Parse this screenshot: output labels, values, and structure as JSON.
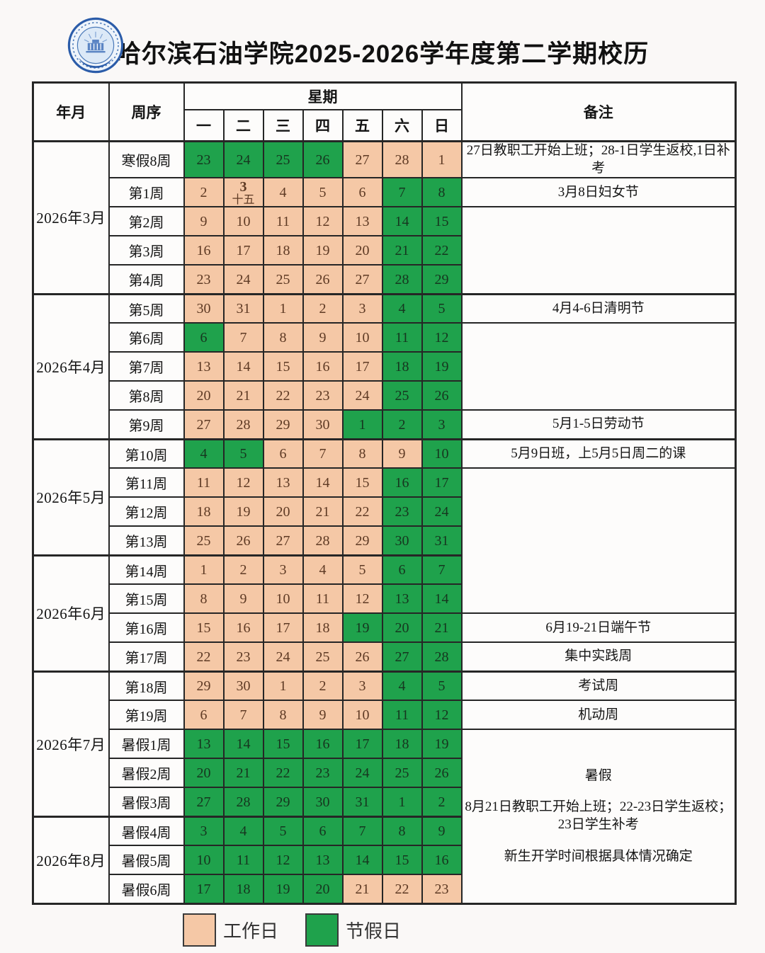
{
  "title": "哈尔滨石油学院2025-2026学年度第二学期校历",
  "logo_name": "school-emblem",
  "colors": {
    "workday": "#f5c8a6",
    "holiday": "#1fa24c",
    "workday_text": "#5e3a24",
    "holiday_text": "#16361f"
  },
  "header": {
    "month": "年月",
    "week_order": "周序",
    "weekday_group": "星期",
    "remarks": "备注",
    "weekdays": [
      "一",
      "二",
      "三",
      "四",
      "五",
      "六",
      "日"
    ]
  },
  "months": [
    {
      "label": "2026年3月",
      "span": 5
    },
    {
      "label": "2026年4月",
      "span": 5
    },
    {
      "label": "2026年5月",
      "span": 4
    },
    {
      "label": "2026年6月",
      "span": 4
    },
    {
      "label": "2026年7月",
      "span": 5
    },
    {
      "label": "2026年8月",
      "span": 3
    }
  ],
  "rows": [
    {
      "week": "寒假8周",
      "days": [
        {
          "d": "23",
          "t": "h"
        },
        {
          "d": "24",
          "t": "h"
        },
        {
          "d": "25",
          "t": "h"
        },
        {
          "d": "26",
          "t": "h"
        },
        {
          "d": "27",
          "t": "w"
        },
        {
          "d": "28",
          "t": "w"
        },
        {
          "d": "1",
          "t": "w"
        }
      ]
    },
    {
      "week": "第1周",
      "days": [
        {
          "d": "2",
          "t": "w"
        },
        {
          "d": "3",
          "t": "w",
          "sub": "十五",
          "bold": true
        },
        {
          "d": "4",
          "t": "w"
        },
        {
          "d": "5",
          "t": "w"
        },
        {
          "d": "6",
          "t": "w"
        },
        {
          "d": "7",
          "t": "h"
        },
        {
          "d": "8",
          "t": "h"
        }
      ]
    },
    {
      "week": "第2周",
      "days": [
        {
          "d": "9",
          "t": "w"
        },
        {
          "d": "10",
          "t": "w"
        },
        {
          "d": "11",
          "t": "w"
        },
        {
          "d": "12",
          "t": "w"
        },
        {
          "d": "13",
          "t": "w"
        },
        {
          "d": "14",
          "t": "h"
        },
        {
          "d": "15",
          "t": "h"
        }
      ]
    },
    {
      "week": "第3周",
      "days": [
        {
          "d": "16",
          "t": "w"
        },
        {
          "d": "17",
          "t": "w"
        },
        {
          "d": "18",
          "t": "w"
        },
        {
          "d": "19",
          "t": "w"
        },
        {
          "d": "20",
          "t": "w"
        },
        {
          "d": "21",
          "t": "h"
        },
        {
          "d": "22",
          "t": "h"
        }
      ]
    },
    {
      "week": "第4周",
      "days": [
        {
          "d": "23",
          "t": "w"
        },
        {
          "d": "24",
          "t": "w"
        },
        {
          "d": "25",
          "t": "w"
        },
        {
          "d": "26",
          "t": "w"
        },
        {
          "d": "27",
          "t": "w"
        },
        {
          "d": "28",
          "t": "h"
        },
        {
          "d": "29",
          "t": "h"
        }
      ]
    },
    {
      "week": "第5周",
      "days": [
        {
          "d": "30",
          "t": "w"
        },
        {
          "d": "31",
          "t": "w"
        },
        {
          "d": "1",
          "t": "w"
        },
        {
          "d": "2",
          "t": "w"
        },
        {
          "d": "3",
          "t": "w"
        },
        {
          "d": "4",
          "t": "h"
        },
        {
          "d": "5",
          "t": "h"
        }
      ]
    },
    {
      "week": "第6周",
      "days": [
        {
          "d": "6",
          "t": "h"
        },
        {
          "d": "7",
          "t": "w"
        },
        {
          "d": "8",
          "t": "w"
        },
        {
          "d": "9",
          "t": "w"
        },
        {
          "d": "10",
          "t": "w"
        },
        {
          "d": "11",
          "t": "h"
        },
        {
          "d": "12",
          "t": "h"
        }
      ]
    },
    {
      "week": "第7周",
      "days": [
        {
          "d": "13",
          "t": "w"
        },
        {
          "d": "14",
          "t": "w"
        },
        {
          "d": "15",
          "t": "w"
        },
        {
          "d": "16",
          "t": "w"
        },
        {
          "d": "17",
          "t": "w"
        },
        {
          "d": "18",
          "t": "h"
        },
        {
          "d": "19",
          "t": "h"
        }
      ]
    },
    {
      "week": "第8周",
      "days": [
        {
          "d": "20",
          "t": "w"
        },
        {
          "d": "21",
          "t": "w"
        },
        {
          "d": "22",
          "t": "w"
        },
        {
          "d": "23",
          "t": "w"
        },
        {
          "d": "24",
          "t": "w"
        },
        {
          "d": "25",
          "t": "h"
        },
        {
          "d": "26",
          "t": "h"
        }
      ]
    },
    {
      "week": "第9周",
      "days": [
        {
          "d": "27",
          "t": "w"
        },
        {
          "d": "28",
          "t": "w"
        },
        {
          "d": "29",
          "t": "w"
        },
        {
          "d": "30",
          "t": "w"
        },
        {
          "d": "1",
          "t": "h"
        },
        {
          "d": "2",
          "t": "h"
        },
        {
          "d": "3",
          "t": "h"
        }
      ]
    },
    {
      "week": "第10周",
      "days": [
        {
          "d": "4",
          "t": "h"
        },
        {
          "d": "5",
          "t": "h"
        },
        {
          "d": "6",
          "t": "w"
        },
        {
          "d": "7",
          "t": "w"
        },
        {
          "d": "8",
          "t": "w"
        },
        {
          "d": "9",
          "t": "w"
        },
        {
          "d": "10",
          "t": "h"
        }
      ]
    },
    {
      "week": "第11周",
      "days": [
        {
          "d": "11",
          "t": "w"
        },
        {
          "d": "12",
          "t": "w"
        },
        {
          "d": "13",
          "t": "w"
        },
        {
          "d": "14",
          "t": "w"
        },
        {
          "d": "15",
          "t": "w"
        },
        {
          "d": "16",
          "t": "h"
        },
        {
          "d": "17",
          "t": "h"
        }
      ]
    },
    {
      "week": "第12周",
      "days": [
        {
          "d": "18",
          "t": "w"
        },
        {
          "d": "19",
          "t": "w"
        },
        {
          "d": "20",
          "t": "w"
        },
        {
          "d": "21",
          "t": "w"
        },
        {
          "d": "22",
          "t": "w"
        },
        {
          "d": "23",
          "t": "h"
        },
        {
          "d": "24",
          "t": "h"
        }
      ]
    },
    {
      "week": "第13周",
      "days": [
        {
          "d": "25",
          "t": "w"
        },
        {
          "d": "26",
          "t": "w"
        },
        {
          "d": "27",
          "t": "w"
        },
        {
          "d": "28",
          "t": "w"
        },
        {
          "d": "29",
          "t": "w"
        },
        {
          "d": "30",
          "t": "h"
        },
        {
          "d": "31",
          "t": "h"
        }
      ]
    },
    {
      "week": "第14周",
      "days": [
        {
          "d": "1",
          "t": "w"
        },
        {
          "d": "2",
          "t": "w"
        },
        {
          "d": "3",
          "t": "w"
        },
        {
          "d": "4",
          "t": "w"
        },
        {
          "d": "5",
          "t": "w"
        },
        {
          "d": "6",
          "t": "h"
        },
        {
          "d": "7",
          "t": "h"
        }
      ]
    },
    {
      "week": "第15周",
      "days": [
        {
          "d": "8",
          "t": "w"
        },
        {
          "d": "9",
          "t": "w"
        },
        {
          "d": "10",
          "t": "w"
        },
        {
          "d": "11",
          "t": "w"
        },
        {
          "d": "12",
          "t": "w"
        },
        {
          "d": "13",
          "t": "h"
        },
        {
          "d": "14",
          "t": "h"
        }
      ]
    },
    {
      "week": "第16周",
      "days": [
        {
          "d": "15",
          "t": "w"
        },
        {
          "d": "16",
          "t": "w"
        },
        {
          "d": "17",
          "t": "w"
        },
        {
          "d": "18",
          "t": "w"
        },
        {
          "d": "19",
          "t": "h"
        },
        {
          "d": "20",
          "t": "h"
        },
        {
          "d": "21",
          "t": "h"
        }
      ]
    },
    {
      "week": "第17周",
      "days": [
        {
          "d": "22",
          "t": "w"
        },
        {
          "d": "23",
          "t": "w"
        },
        {
          "d": "24",
          "t": "w"
        },
        {
          "d": "25",
          "t": "w"
        },
        {
          "d": "26",
          "t": "w"
        },
        {
          "d": "27",
          "t": "h"
        },
        {
          "d": "28",
          "t": "h"
        }
      ]
    },
    {
      "week": "第18周",
      "days": [
        {
          "d": "29",
          "t": "w"
        },
        {
          "d": "30",
          "t": "w"
        },
        {
          "d": "1",
          "t": "w"
        },
        {
          "d": "2",
          "t": "w"
        },
        {
          "d": "3",
          "t": "w"
        },
        {
          "d": "4",
          "t": "h"
        },
        {
          "d": "5",
          "t": "h"
        }
      ]
    },
    {
      "week": "第19周",
      "days": [
        {
          "d": "6",
          "t": "w"
        },
        {
          "d": "7",
          "t": "w"
        },
        {
          "d": "8",
          "t": "w"
        },
        {
          "d": "9",
          "t": "w"
        },
        {
          "d": "10",
          "t": "w"
        },
        {
          "d": "11",
          "t": "h"
        },
        {
          "d": "12",
          "t": "h"
        }
      ]
    },
    {
      "week": "暑假1周",
      "days": [
        {
          "d": "13",
          "t": "h"
        },
        {
          "d": "14",
          "t": "h"
        },
        {
          "d": "15",
          "t": "h"
        },
        {
          "d": "16",
          "t": "h"
        },
        {
          "d": "17",
          "t": "h"
        },
        {
          "d": "18",
          "t": "h"
        },
        {
          "d": "19",
          "t": "h"
        }
      ]
    },
    {
      "week": "暑假2周",
      "days": [
        {
          "d": "20",
          "t": "h"
        },
        {
          "d": "21",
          "t": "h"
        },
        {
          "d": "22",
          "t": "h"
        },
        {
          "d": "23",
          "t": "h"
        },
        {
          "d": "24",
          "t": "h"
        },
        {
          "d": "25",
          "t": "h"
        },
        {
          "d": "26",
          "t": "h"
        }
      ]
    },
    {
      "week": "暑假3周",
      "days": [
        {
          "d": "27",
          "t": "h"
        },
        {
          "d": "28",
          "t": "h"
        },
        {
          "d": "29",
          "t": "h"
        },
        {
          "d": "30",
          "t": "h"
        },
        {
          "d": "31",
          "t": "h"
        },
        {
          "d": "1",
          "t": "h"
        },
        {
          "d": "2",
          "t": "h"
        }
      ]
    },
    {
      "week": "暑假4周",
      "days": [
        {
          "d": "3",
          "t": "h"
        },
        {
          "d": "4",
          "t": "h"
        },
        {
          "d": "5",
          "t": "h"
        },
        {
          "d": "6",
          "t": "h"
        },
        {
          "d": "7",
          "t": "h"
        },
        {
          "d": "8",
          "t": "h"
        },
        {
          "d": "9",
          "t": "h"
        }
      ]
    },
    {
      "week": "暑假5周",
      "days": [
        {
          "d": "10",
          "t": "h"
        },
        {
          "d": "11",
          "t": "h"
        },
        {
          "d": "12",
          "t": "h"
        },
        {
          "d": "13",
          "t": "h"
        },
        {
          "d": "14",
          "t": "h"
        },
        {
          "d": "15",
          "t": "h"
        },
        {
          "d": "16",
          "t": "h"
        }
      ]
    },
    {
      "week": "暑假6周",
      "days": [
        {
          "d": "17",
          "t": "h"
        },
        {
          "d": "18",
          "t": "h"
        },
        {
          "d": "19",
          "t": "h"
        },
        {
          "d": "20",
          "t": "h"
        },
        {
          "d": "21",
          "t": "w"
        },
        {
          "d": "22",
          "t": "w"
        },
        {
          "d": "23",
          "t": "w"
        }
      ]
    }
  ],
  "remarks": [
    {
      "row": 0,
      "span": 1,
      "lines": [
        "27日教职工开始上班；28-1日学生返校,1日补考"
      ]
    },
    {
      "row": 1,
      "span": 1,
      "lines": [
        "3月8日妇女节"
      ]
    },
    {
      "row": 2,
      "span": 3,
      "lines": []
    },
    {
      "row": 5,
      "span": 1,
      "lines": [
        "4月4-6日清明节"
      ]
    },
    {
      "row": 6,
      "span": 3,
      "lines": []
    },
    {
      "row": 9,
      "span": 1,
      "lines": [
        "5月1-5日劳动节"
      ]
    },
    {
      "row": 10,
      "span": 1,
      "lines": [
        "5月9日班，上5月5日周二的课"
      ]
    },
    {
      "row": 11,
      "span": 5,
      "lines": []
    },
    {
      "row": 16,
      "span": 1,
      "lines": [
        "6月19-21日端午节"
      ]
    },
    {
      "row": 17,
      "span": 1,
      "lines": [
        "集中实践周"
      ]
    },
    {
      "row": 18,
      "span": 1,
      "lines": [
        "考试周"
      ]
    },
    {
      "row": 19,
      "span": 1,
      "lines": [
        "机动周"
      ]
    },
    {
      "row": 20,
      "span": 6,
      "lines": [
        "暑假",
        "8月21日教职工开始上班；22-23日学生返校；23日学生补考",
        "新生开学时间根据具体情况确定"
      ]
    }
  ],
  "legend": [
    {
      "type": "workday",
      "label": "工作日"
    },
    {
      "type": "holiday",
      "label": "节假日"
    }
  ]
}
